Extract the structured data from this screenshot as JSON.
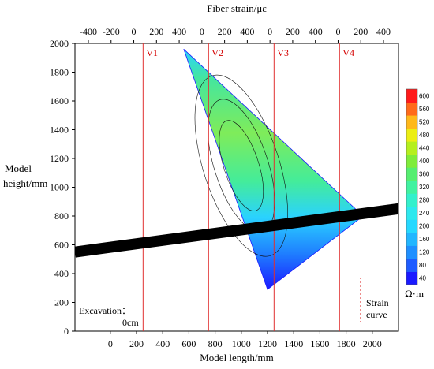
{
  "chart_data": {
    "type": "heatmap",
    "title": "",
    "top_axis_label": "Fiber strain/με",
    "top_ticks": [
      "-400",
      "-200",
      "0",
      "200",
      "400",
      "0",
      "200",
      "400",
      "0",
      "200",
      "400",
      "0",
      "200",
      "400"
    ],
    "xlabel": "Model length/mm",
    "x_ticks": [
      0,
      200,
      400,
      600,
      800,
      1000,
      1200,
      1400,
      1600,
      1800,
      2000
    ],
    "xlim": [
      -270,
      2200
    ],
    "ylabel_line1": "Model",
    "ylabel_line2": "height/mm",
    "y_ticks": [
      0,
      200,
      400,
      600,
      800,
      1000,
      1200,
      1400,
      1600,
      1800,
      2000
    ],
    "ylim": [
      0,
      2000
    ],
    "vertical_lines": [
      {
        "name": "V1",
        "x": 250
      },
      {
        "name": "V2",
        "x": 750
      },
      {
        "name": "V3",
        "x": 1250
      },
      {
        "name": "V4",
        "x": 1750
      }
    ],
    "seam": {
      "x_start": -270,
      "y_start": 550,
      "x_end": 2200,
      "y_end": 850
    },
    "excavated_zone": {
      "vertices": [
        [
          560,
          1960
        ],
        [
          1930,
          800
        ],
        [
          1200,
          290
        ]
      ]
    },
    "colorbar": {
      "unit": "Ω·m",
      "ticks": [
        40,
        80,
        120,
        160,
        200,
        240,
        280,
        320,
        360,
        400,
        440,
        480,
        520,
        560,
        600
      ],
      "colors": [
        "#1a1aff",
        "#1e5cff",
        "#1f8fff",
        "#22b6ff",
        "#25d8ff",
        "#2ee8ee",
        "#33f0cc",
        "#40f2a0",
        "#55ee70",
        "#7fec3a",
        "#b5ef1e",
        "#ecee14",
        "#ffb81a",
        "#ff6a1a",
        "#ff1a1a"
      ]
    },
    "annotations": {
      "excavation_label": "Excavation：",
      "excavation_value": "0cm",
      "strain_label_line1": "Strain",
      "strain_label_line2": "curve"
    }
  }
}
